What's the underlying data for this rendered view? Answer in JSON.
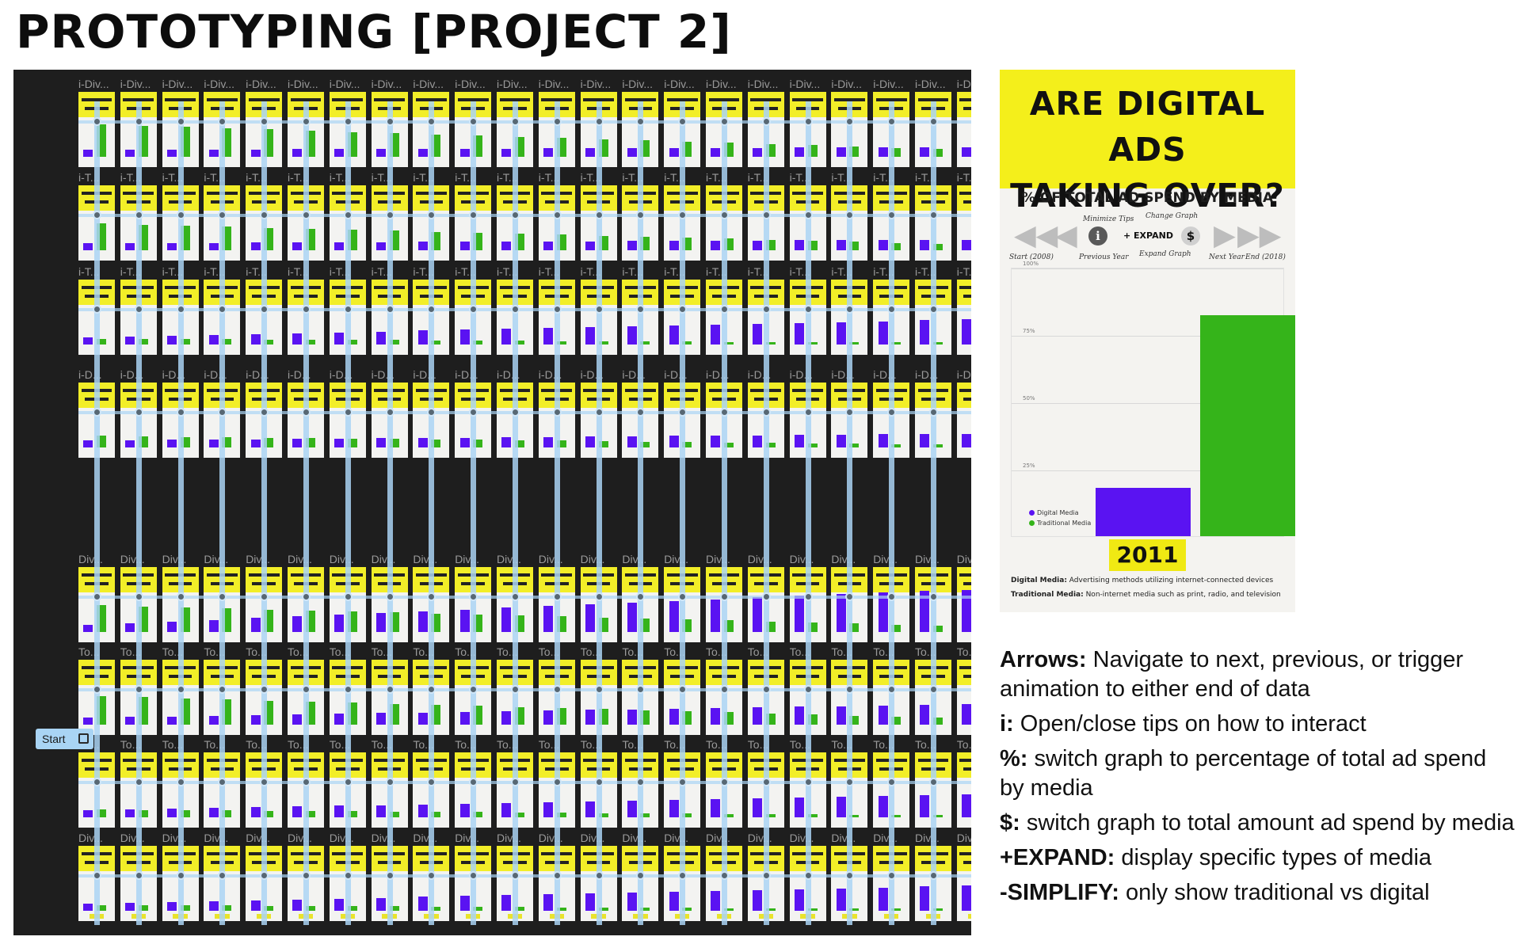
{
  "title": "PROTOTYPING [PROJECT 2]",
  "canvas": {
    "start_label": "Start",
    "row_labels": [
      "i-Div...",
      "i-T...",
      "i-T...",
      "i-D...",
      "Div...",
      "To...",
      "To...",
      "Div..."
    ],
    "columns": 22
  },
  "preview": {
    "headline_1": "ARE DIGITAL ADS",
    "headline_2": "TAKING OVER?",
    "subtitle": "% OF TOTAL AD SPEND BY MEDIA",
    "controls": {
      "minimize_tips": "Minimize Tips",
      "change_graph": "Change Graph",
      "start": "Start (2008)",
      "previous": "Previous Year",
      "expand_label": "+ EXPAND",
      "expand_graph": "Expand Graph",
      "next": "Next Year",
      "end": "End (2018)",
      "info_glyph": "i",
      "dollar_glyph": "$"
    },
    "ticks": [
      "100%",
      "75%",
      "50%",
      "25%"
    ],
    "legend": [
      "Digital Media",
      "Traditional Media"
    ],
    "year": "2011",
    "definitions": [
      {
        "term": "Digital Media:",
        "text": " Advertising methods utilizing internet-connected devices"
      },
      {
        "term": "Traditional Media:",
        "text": " Non-internet media such as print, radio, and television"
      }
    ]
  },
  "chart_data": {
    "type": "bar",
    "categories": [
      "Digital Media",
      "Traditional Media"
    ],
    "values": [
      18,
      82
    ],
    "ylim": [
      0,
      100
    ],
    "colors": [
      "#5a13f2",
      "#35b41a"
    ]
  },
  "notes": [
    {
      "term": "Arrows:",
      "text": " Navigate to next, previous, or trigger animation to either end of data"
    },
    {
      "term": "i:",
      "text": " Open/close tips on how to interact"
    },
    {
      "term": "%:",
      "text": " switch graph to percentage of total ad spend by media"
    },
    {
      "term": "$:",
      "text": " switch graph to total amount ad spend by media"
    },
    {
      "term": "+EXPAND:",
      "text": " display specific types of media"
    },
    {
      "term": "-SIMPLIFY:",
      "text": " only show traditional vs digital"
    }
  ]
}
